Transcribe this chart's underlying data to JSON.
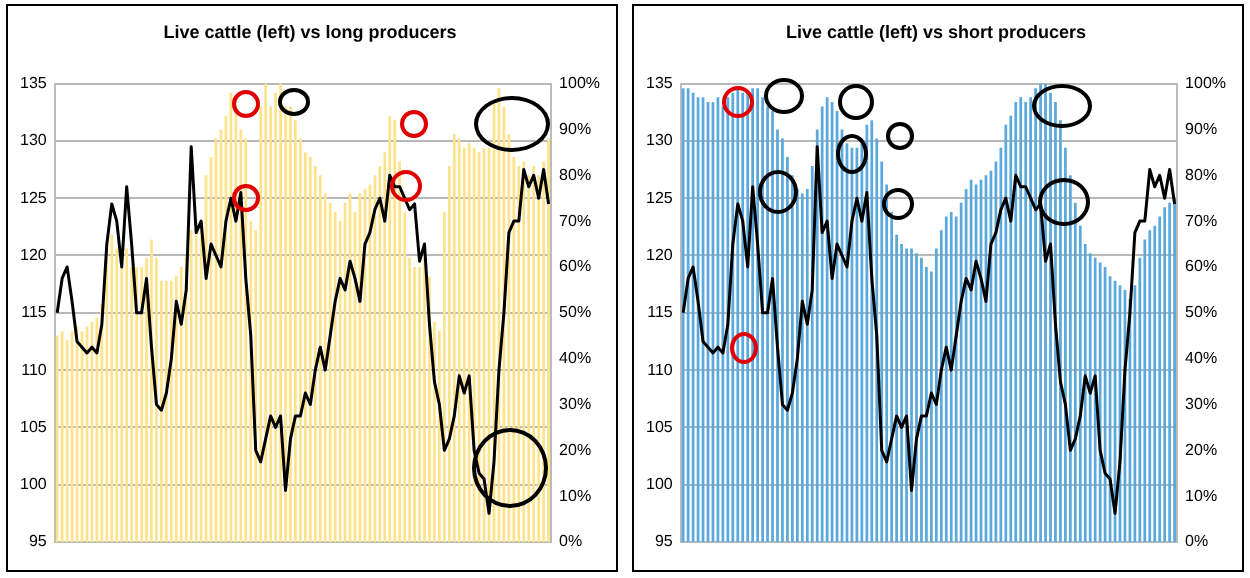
{
  "chart_data": [
    {
      "type": "bar",
      "title": "Live cattle (left) vs long producers",
      "categories": [
        null,
        null,
        null,
        null,
        null,
        null,
        null,
        null,
        null,
        null,
        null,
        null,
        null,
        null,
        null,
        null,
        null,
        null,
        null,
        null,
        null,
        null,
        null,
        null,
        null,
        null,
        null,
        null,
        null,
        null,
        null,
        null,
        null,
        null,
        null,
        null,
        null,
        null,
        null,
        null,
        null,
        null,
        null,
        null,
        null,
        null,
        null,
        null,
        null,
        null,
        null,
        null,
        null,
        null,
        null,
        null,
        null,
        null,
        null,
        null,
        null,
        null,
        null,
        null,
        null,
        null,
        null,
        null,
        null,
        null,
        null,
        null,
        null,
        null,
        null,
        null,
        null,
        null,
        null,
        null,
        null,
        null,
        null,
        null,
        null,
        null,
        null,
        null,
        null,
        null,
        null,
        null,
        null,
        null,
        null,
        null,
        null,
        null,
        null,
        null
      ],
      "series": [
        {
          "axis": "y2",
          "color": "#ffe38a",
          "values": [
            45,
            46,
            44,
            46,
            47,
            46,
            47,
            48,
            49,
            52,
            62,
            67,
            64,
            65,
            64,
            60,
            60,
            60,
            62,
            66,
            62,
            57,
            57,
            57,
            58,
            60,
            62,
            68,
            68,
            70,
            80,
            84,
            88,
            90,
            93,
            98,
            95,
            90,
            88,
            70,
            68,
            95,
            100,
            95,
            98,
            100,
            95,
            95,
            92,
            88,
            85,
            84,
            82,
            80,
            76,
            74,
            72,
            70,
            74,
            76,
            72,
            76,
            77,
            78,
            80,
            82,
            85,
            93,
            92,
            83,
            72,
            62,
            60,
            60,
            62,
            58,
            48,
            46,
            72,
            82,
            89,
            88,
            86,
            87,
            86,
            85,
            86,
            86,
            96,
            99,
            95,
            89,
            84,
            82,
            83,
            80,
            82,
            80,
            83,
            88
          ]
        },
        {
          "type": "line",
          "axis": "y",
          "color": "#000000",
          "values": [
            115,
            118,
            119,
            116,
            112.5,
            112,
            111.5,
            112,
            111.5,
            114,
            121,
            124.5,
            123,
            119,
            126,
            121,
            115,
            115,
            118,
            112,
            107,
            106.5,
            108,
            111,
            116,
            114,
            117,
            129.5,
            122,
            123,
            118,
            121,
            120,
            119,
            123,
            125,
            123,
            125.5,
            118,
            113,
            103,
            102,
            104,
            106,
            105,
            106,
            99.5,
            104,
            106,
            106,
            108,
            107,
            110,
            112,
            110,
            113,
            116,
            118,
            117,
            119.5,
            118,
            116,
            121,
            122,
            124,
            125,
            123,
            127,
            126,
            126,
            125,
            124,
            124.5,
            119.5,
            121,
            114,
            109,
            107,
            103,
            104,
            106,
            109.5,
            108,
            109.5,
            103,
            101,
            100.5,
            97.5,
            102,
            110,
            115,
            122,
            123,
            123,
            127.5,
            126,
            127,
            125,
            127.5,
            124.5
          ]
        }
      ],
      "ylim": [
        95,
        135
      ],
      "yticks": [
        95,
        100,
        105,
        110,
        115,
        120,
        125,
        130,
        135
      ],
      "y2lim": [
        0,
        100
      ],
      "y2ticks": [
        {
          "value": 0,
          "label": "0%"
        },
        {
          "value": 10,
          "label": "10%"
        },
        {
          "value": 20,
          "label": "20%"
        },
        {
          "value": 30,
          "label": "30%"
        },
        {
          "value": 40,
          "label": "40%"
        },
        {
          "value": 50,
          "label": "50%"
        },
        {
          "value": 60,
          "label": "60%"
        },
        {
          "value": 70,
          "label": "70%"
        },
        {
          "value": 80,
          "label": "80%"
        },
        {
          "value": 90,
          "label": "90%"
        },
        {
          "value": 100,
          "label": "100%"
        }
      ],
      "grid": "y",
      "marker": "none",
      "line_style": "solid"
    },
    {
      "type": "bar",
      "title": "Live cattle (left) vs short producers",
      "categories": [
        null,
        null,
        null,
        null,
        null,
        null,
        null,
        null,
        null,
        null,
        null,
        null,
        null,
        null,
        null,
        null,
        null,
        null,
        null,
        null,
        null,
        null,
        null,
        null,
        null,
        null,
        null,
        null,
        null,
        null,
        null,
        null,
        null,
        null,
        null,
        null,
        null,
        null,
        null,
        null,
        null,
        null,
        null,
        null,
        null,
        null,
        null,
        null,
        null,
        null,
        null,
        null,
        null,
        null,
        null,
        null,
        null,
        null,
        null,
        null,
        null,
        null,
        null,
        null,
        null,
        null,
        null,
        null,
        null,
        null,
        null,
        null,
        null,
        null,
        null,
        null,
        null,
        null,
        null,
        null,
        null,
        null,
        null,
        null,
        null,
        null,
        null,
        null,
        null,
        null,
        null,
        null,
        null,
        null,
        null,
        null,
        null,
        null,
        null,
        null
      ],
      "series": [
        {
          "axis": "y2",
          "color": "#5aa8dc",
          "values": [
            99,
            99,
            98,
            97,
            97,
            96,
            96,
            97,
            95,
            97,
            98,
            99,
            98,
            98,
            99,
            99,
            97,
            95,
            94,
            90,
            88,
            84,
            80,
            77,
            76,
            77,
            82,
            90,
            95,
            97,
            96,
            94,
            90,
            87,
            86,
            86,
            88,
            91,
            92,
            88,
            83,
            78,
            72,
            67,
            65,
            64,
            64,
            63,
            62,
            60,
            59,
            64,
            68,
            71,
            72,
            71,
            74,
            77,
            79,
            78,
            79,
            80,
            81,
            83,
            86,
            91,
            93,
            96,
            97,
            96,
            97,
            99,
            100,
            100,
            98,
            96,
            92,
            86,
            80,
            74,
            69,
            65,
            63,
            62,
            61,
            60,
            58,
            57,
            56,
            55,
            53,
            56,
            62,
            66,
            68,
            69,
            71,
            73,
            74,
            75
          ]
        },
        {
          "type": "line",
          "axis": "y",
          "color": "#000000",
          "values": [
            115,
            118,
            119,
            116,
            112.5,
            112,
            111.5,
            112,
            111.5,
            114,
            121,
            124.5,
            123,
            119,
            126,
            121,
            115,
            115,
            118,
            112,
            107,
            106.5,
            108,
            111,
            116,
            114,
            117,
            129.5,
            122,
            123,
            118,
            121,
            120,
            119,
            123,
            125,
            123,
            125.5,
            118,
            113,
            103,
            102,
            104,
            106,
            105,
            106,
            99.5,
            104,
            106,
            106,
            108,
            107,
            110,
            112,
            110,
            113,
            116,
            118,
            117,
            119.5,
            118,
            116,
            121,
            122,
            124,
            125,
            123,
            127,
            126,
            126,
            125,
            124,
            124.5,
            119.5,
            121,
            114,
            109,
            107,
            103,
            104,
            106,
            109.5,
            108,
            109.5,
            103,
            101,
            100.5,
            97.5,
            102,
            110,
            115,
            122,
            123,
            123,
            127.5,
            126,
            127,
            125,
            127.5,
            124.5
          ]
        }
      ],
      "ylim": [
        95,
        135
      ],
      "yticks": [
        95,
        100,
        105,
        110,
        115,
        120,
        125,
        130,
        135
      ],
      "y2lim": [
        0,
        100
      ],
      "y2ticks": [
        {
          "value": 0,
          "label": "0%"
        },
        {
          "value": 10,
          "label": "10%"
        },
        {
          "value": 20,
          "label": "20%"
        },
        {
          "value": 30,
          "label": "30%"
        },
        {
          "value": 40,
          "label": "40%"
        },
        {
          "value": 50,
          "label": "50%"
        },
        {
          "value": 60,
          "label": "60%"
        },
        {
          "value": 70,
          "label": "70%"
        },
        {
          "value": 80,
          "label": "80%"
        },
        {
          "value": 90,
          "label": "90%"
        },
        {
          "value": 100,
          "label": "100%"
        }
      ],
      "grid": "y",
      "marker": "none",
      "line_style": "solid"
    }
  ]
}
